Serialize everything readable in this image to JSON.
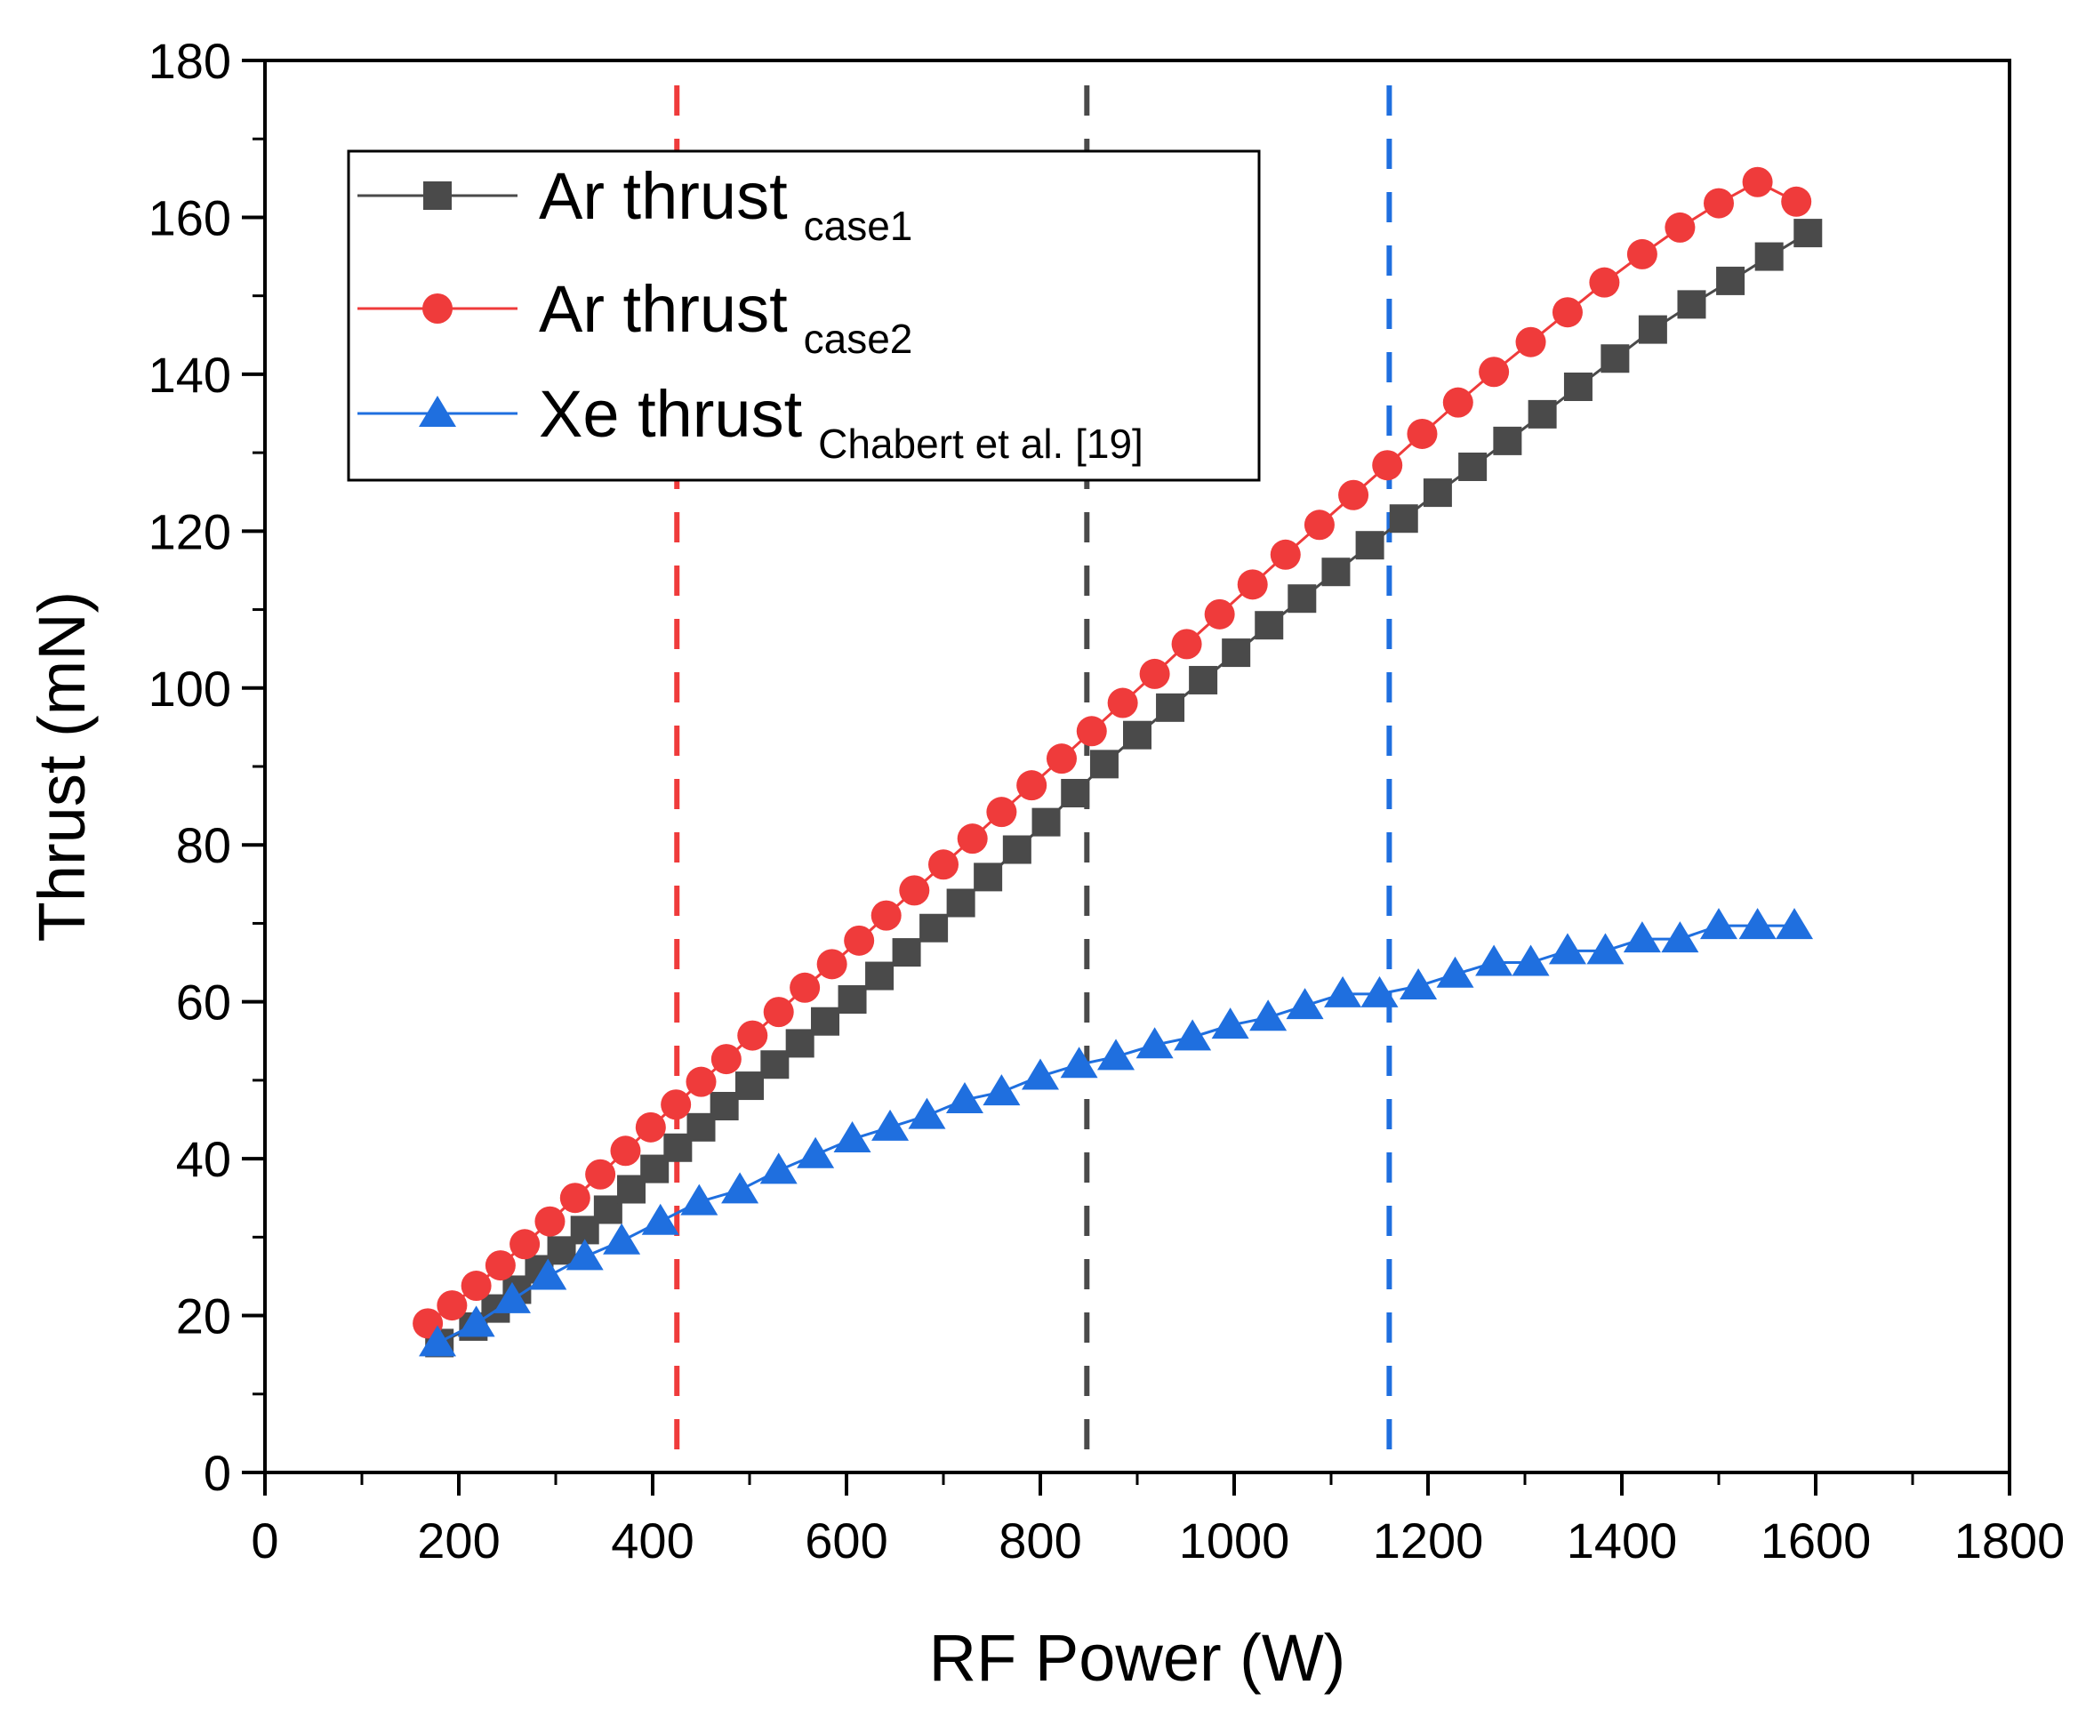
{
  "chart_data": {
    "type": "line",
    "title": "",
    "xlabel": "RF Power (W)",
    "ylabel": "Thrust (mN)",
    "xlim": [
      0,
      1800
    ],
    "ylim": [
      0,
      180
    ],
    "x_ticks": [
      0,
      200,
      400,
      600,
      800,
      1000,
      1200,
      1400,
      1600,
      1800
    ],
    "y_ticks": [
      0,
      20,
      40,
      60,
      80,
      100,
      120,
      140,
      160,
      180
    ],
    "legend_position": "top-left",
    "series": [
      {
        "name": "Ar thrust",
        "subscript": "case1",
        "color": "#4a4a4a",
        "marker": "square",
        "x": [
          180,
          215,
          238,
          260,
          283,
          306,
          330,
          354,
          378,
          402,
          426,
          450,
          474,
          500,
          526,
          552,
          578,
          606,
          634,
          662,
          690,
          718,
          746,
          776,
          806,
          836,
          866,
          900,
          934,
          968,
          1002,
          1036,
          1070,
          1105,
          1140,
          1175,
          1210,
          1246,
          1282,
          1318,
          1355,
          1393,
          1432,
          1472,
          1512,
          1552,
          1592
        ],
        "y": [
          16.5,
          18.6,
          20.9,
          23.3,
          25.9,
          28.3,
          30.9,
          33.5,
          36.1,
          38.7,
          41.4,
          44.0,
          46.7,
          49.3,
          52.0,
          54.7,
          57.5,
          60.3,
          63.3,
          66.3,
          69.4,
          72.6,
          75.9,
          79.4,
          82.9,
          86.6,
          90.3,
          94.0,
          97.5,
          101.0,
          104.5,
          108.0,
          111.4,
          114.8,
          118.2,
          121.6,
          124.9,
          128.2,
          131.5,
          134.9,
          138.4,
          142.0,
          145.7,
          148.9,
          151.9,
          155.0,
          158.0
        ]
      },
      {
        "name": "Ar thrust",
        "subscript": "case2",
        "color": "#ef3b3b",
        "marker": "circle",
        "x": [
          168,
          193,
          218,
          243,
          268,
          294,
          320,
          346,
          372,
          398,
          424,
          450,
          476,
          503,
          530,
          557,
          585,
          613,
          641,
          670,
          700,
          730,
          760,
          791,
          822,
          853,
          885,
          918,
          951,
          985,
          1019,
          1053,
          1088,
          1123,
          1158,
          1194,
          1231,
          1268,
          1306,
          1344,
          1382,
          1421,
          1460,
          1500,
          1540,
          1580
        ],
        "y": [
          19.0,
          21.3,
          23.8,
          26.4,
          29.1,
          32.0,
          35.0,
          38.0,
          41.0,
          44.0,
          46.9,
          49.8,
          52.7,
          55.7,
          58.7,
          61.8,
          64.8,
          67.8,
          71.0,
          74.2,
          77.5,
          80.8,
          84.2,
          87.6,
          91.0,
          94.5,
          98.1,
          101.8,
          105.6,
          109.4,
          113.2,
          117.0,
          120.8,
          124.6,
          128.4,
          132.4,
          136.4,
          140.3,
          144.1,
          147.9,
          151.7,
          155.3,
          158.7,
          161.8,
          164.5,
          162.0
        ]
      },
      {
        "name": "Xe thrust",
        "subscript": "Chabert et al. [19]",
        "color": "#1f6fdf",
        "marker": "triangle",
        "x": [
          178,
          218,
          255,
          292,
          330,
          368,
          408,
          448,
          490,
          530,
          568,
          606,
          645,
          683,
          722,
          760,
          800,
          840,
          878,
          918,
          957,
          996,
          1035,
          1073,
          1112,
          1150,
          1190,
          1228,
          1268,
          1306,
          1344,
          1383,
          1421,
          1460,
          1500,
          1540,
          1578
        ],
        "y": [
          16.5,
          19.0,
          22.0,
          25.0,
          27.5,
          29.5,
          32.0,
          34.5,
          36.0,
          38.5,
          40.5,
          42.5,
          44.0,
          45.5,
          47.5,
          48.5,
          50.5,
          52.0,
          53.0,
          54.5,
          55.5,
          57.0,
          58.0,
          59.5,
          61.0,
          61.0,
          62.0,
          63.5,
          65.0,
          65.0,
          66.5,
          66.5,
          68.0,
          68.0,
          69.7,
          69.7,
          69.7
        ]
      }
    ],
    "vlines": [
      {
        "x": 425,
        "color": "#ef3b3b",
        "style": "dashed"
      },
      {
        "x": 848,
        "color": "#4a4a4a",
        "style": "dashed"
      },
      {
        "x": 1160,
        "color": "#1f6fdf",
        "style": "dashed"
      }
    ]
  }
}
